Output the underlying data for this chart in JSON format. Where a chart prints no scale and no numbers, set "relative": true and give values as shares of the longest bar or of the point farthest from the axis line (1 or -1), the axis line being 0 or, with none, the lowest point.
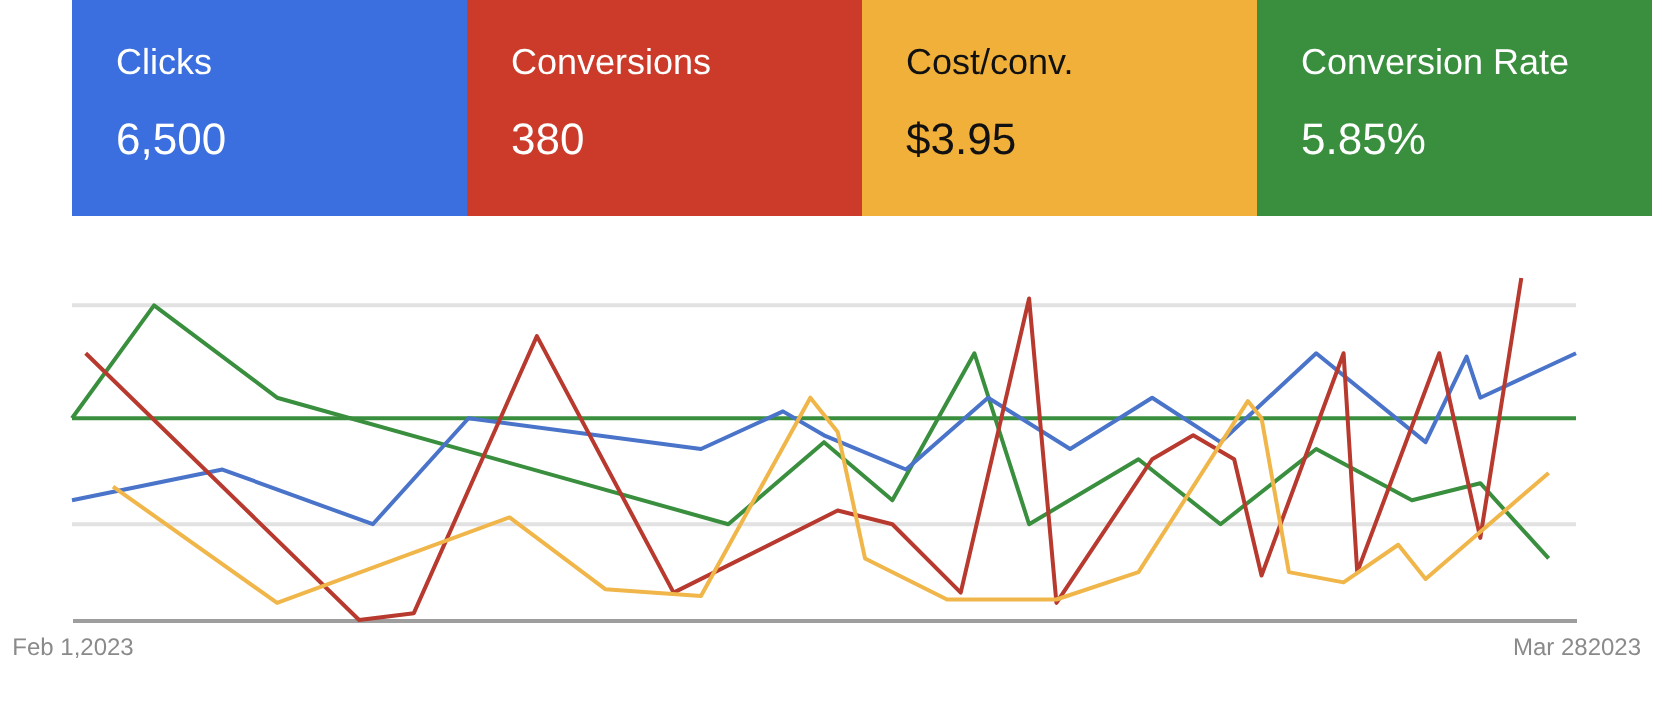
{
  "chart_data": [
    {
      "type": "other",
      "categories": [
        "Clicks",
        "Conversions",
        "Cost/conv.",
        "Conversion Rate"
      ],
      "value_labels": [
        "6,500",
        "380",
        "$3.95",
        "5.85%"
      ],
      "colors": [
        "#3b6fe0",
        "#cc3b2a",
        "#f0b03a",
        "#3a8f3f"
      ]
    },
    {
      "type": "line",
      "relative": true,
      "xlim": [
        "2023-02-01",
        "2023-03-28"
      ],
      "xticks": [
        {
          "value": "2023-02-01",
          "label": "Feb 1,2023"
        },
        {
          "value": "2023-03-28",
          "label": "Mar 282023"
        }
      ],
      "ref_lines": [
        {
          "axis": "y",
          "value": 0.92,
          "color": "#e2e2e2"
        },
        {
          "axis": "y",
          "value": 0.28,
          "color": "#e2e2e2"
        },
        {
          "axis": "y",
          "value": 0.59,
          "color": "#3a8f3f"
        }
      ],
      "series": [
        {
          "color": "#3a8f3f",
          "x": [
            "2023-02-01",
            "2023-02-04",
            "2023-02-08T12:00",
            "2023-02-25",
            "2023-02-28T12:00",
            "2023-03-03",
            "2023-03-06",
            "2023-03-08",
            "2023-03-12",
            "2023-03-15",
            "2023-03-18T12:00",
            "2023-03-22",
            "2023-03-24T12:00",
            "2023-03-27"
          ],
          "values": [
            0.59,
            0.92,
            0.65,
            0.28,
            0.52,
            0.35,
            0.78,
            0.28,
            0.47,
            0.28,
            0.5,
            0.35,
            0.4,
            0.18
          ]
        },
        {
          "color": "#4a74c9",
          "x": [
            "2023-02-01",
            "2023-02-06T12:00",
            "2023-02-12",
            "2023-02-15T12:00",
            "2023-02-24",
            "2023-02-27",
            "2023-02-28T12:00",
            "2023-03-03T12:00",
            "2023-03-06T12:00",
            "2023-03-09T12:00",
            "2023-03-12T12:00",
            "2023-03-15",
            "2023-03-18T12:00",
            "2023-03-22T12:00",
            "2023-03-24",
            "2023-03-24T12:00",
            "2023-03-28"
          ],
          "values": [
            0.35,
            0.44,
            0.28,
            0.59,
            0.5,
            0.61,
            0.54,
            0.44,
            0.65,
            0.5,
            0.65,
            0.52,
            0.78,
            0.52,
            0.77,
            0.65,
            0.78
          ]
        },
        {
          "color": "#b8392e",
          "x": [
            "2023-02-01T12:00",
            "2023-02-11T12:00",
            "2023-02-13T12:00",
            "2023-02-18",
            "2023-02-23",
            "2023-03-01",
            "2023-03-03",
            "2023-03-05T12:00",
            "2023-03-08",
            "2023-03-09",
            "2023-03-12T12:00",
            "2023-03-14",
            "2023-03-15T12:00",
            "2023-03-16T12:00",
            "2023-03-19T12:00",
            "2023-03-20",
            "2023-03-23",
            "2023-03-24T12:00",
            "2023-03-26"
          ],
          "values": [
            0.78,
            0.0,
            0.02,
            0.83,
            0.08,
            0.32,
            0.28,
            0.08,
            0.94,
            0.05,
            0.47,
            0.54,
            0.47,
            0.13,
            0.78,
            0.14,
            0.78,
            0.24,
            1.0
          ]
        },
        {
          "color": "#f0b64a",
          "x": [
            "2023-02-02T12:00",
            "2023-02-08T12:00",
            "2023-02-17",
            "2023-02-20T12:00",
            "2023-02-24",
            "2023-02-28",
            "2023-03-01",
            "2023-03-02",
            "2023-03-05",
            "2023-03-09",
            "2023-03-12",
            "2023-03-16",
            "2023-03-16T12:00",
            "2023-03-17T12:00",
            "2023-03-19T12:00",
            "2023-03-21T12:00",
            "2023-03-22T12:00",
            "2023-03-27"
          ],
          "values": [
            0.39,
            0.05,
            0.3,
            0.09,
            0.07,
            0.65,
            0.55,
            0.18,
            0.06,
            0.06,
            0.14,
            0.64,
            0.59,
            0.14,
            0.11,
            0.22,
            0.12,
            0.43
          ]
        }
      ]
    }
  ]
}
